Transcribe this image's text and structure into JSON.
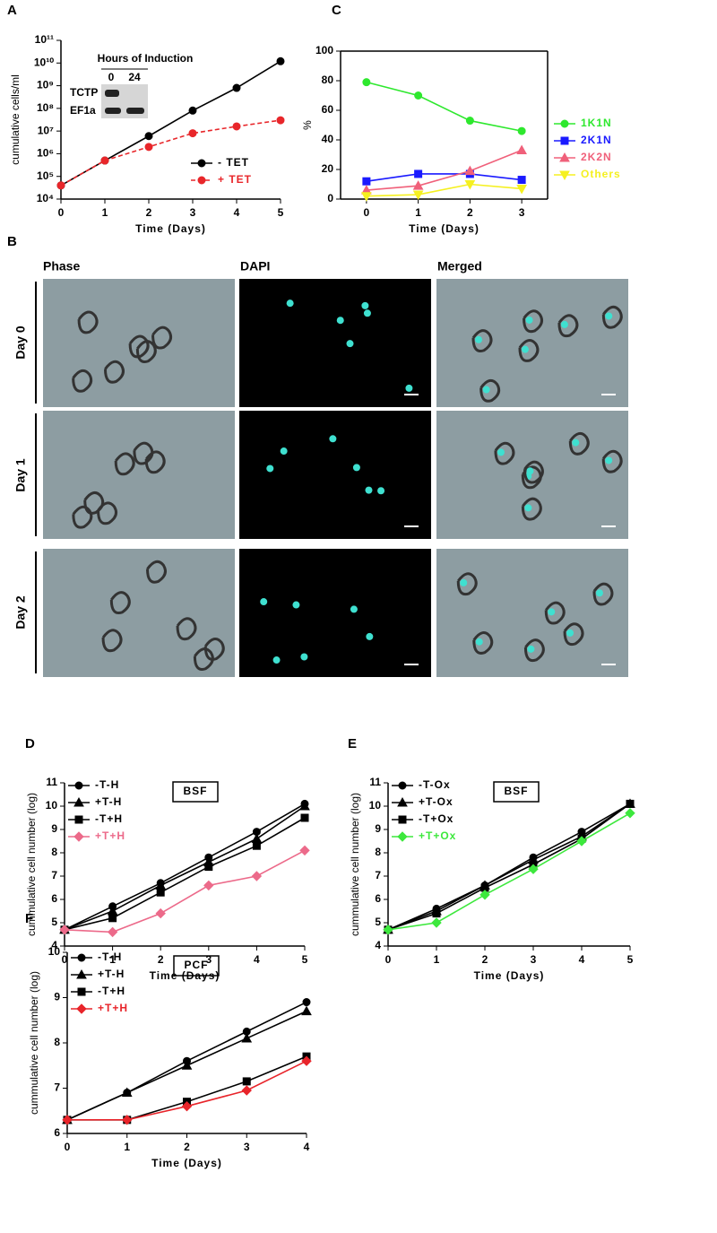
{
  "chart_data": [
    {
      "type": "line",
      "panel": "A",
      "xlabel": "Time (Days)",
      "ylabel": "cumulative cells/ml",
      "log_scale": true,
      "xlim": [
        0,
        5
      ],
      "xticks": [
        0,
        1,
        2,
        3,
        4,
        5
      ],
      "ylim": [
        10000,
        100000000000
      ],
      "yticks": [
        {
          "value": 10000,
          "label": "10⁴"
        },
        {
          "value": 100000,
          "label": "10⁵"
        },
        {
          "value": 1000000,
          "label": "10⁶"
        },
        {
          "value": 10000000,
          "label": "10⁷"
        },
        {
          "value": 100000000,
          "label": "10⁸"
        },
        {
          "value": 1000000000,
          "label": "10⁹"
        },
        {
          "value": 10000000000,
          "label": "10¹⁰"
        },
        {
          "value": 100000000000,
          "label": "10¹¹"
        }
      ],
      "legend_position": "lower right",
      "x": [
        0,
        1,
        2,
        3,
        4,
        5
      ],
      "series": [
        {
          "name": "- TET",
          "color": "#000000",
          "marker": "circle",
          "values": [
            40000,
            500000,
            6000000,
            80000000,
            800000000,
            12000000000
          ]
        },
        {
          "name": "+ TET",
          "color": "#e8262a",
          "marker": "circle",
          "dash": true,
          "values": [
            40000,
            500000,
            2000000,
            8000000,
            16000000,
            30000000
          ]
        }
      ],
      "inset": {
        "title": "Hours of Induction",
        "lanes": [
          "0",
          "24"
        ],
        "rows": [
          "TCTP",
          "EF1a"
        ]
      }
    },
    {
      "type": "line",
      "panel": "C",
      "xlabel": "Time (Days)",
      "ylabel": "%",
      "xlim": [
        -0.5,
        3.5
      ],
      "xticks": [
        0,
        1,
        2,
        3
      ],
      "ylim": [
        0,
        100
      ],
      "yticks": [
        0,
        20,
        40,
        60,
        80,
        100
      ],
      "legend_position": "right",
      "x": [
        0,
        1,
        2,
        3
      ],
      "series": [
        {
          "name": "1K1N",
          "color": "#2ee82e",
          "marker": "circle",
          "values": [
            79,
            70,
            53,
            46
          ]
        },
        {
          "name": "2K1N",
          "color": "#1a1aff",
          "marker": "square",
          "values": [
            12,
            17,
            17,
            13
          ]
        },
        {
          "name": "2K2N",
          "color": "#f0607a",
          "marker": "triangle",
          "values": [
            6,
            9,
            19,
            33
          ]
        },
        {
          "name": "Others",
          "color": "#f5f020",
          "marker": "triangle-down",
          "values": [
            2,
            3,
            10,
            7
          ]
        }
      ]
    },
    {
      "type": "line",
      "panel": "D",
      "xlabel": "Time (Days)",
      "ylabel": "cummulative cell number (log)",
      "annotation": "BSF",
      "xlim": [
        0,
        5
      ],
      "xticks": [
        0,
        1,
        2,
        3,
        4,
        5
      ],
      "ylim": [
        4,
        11
      ],
      "yticks": [
        4,
        5,
        6,
        7,
        8,
        9,
        10,
        11
      ],
      "legend_position": "upper left",
      "x": [
        0,
        1,
        2,
        3,
        4,
        5
      ],
      "series": [
        {
          "name": "-T-H",
          "color": "#000000",
          "marker": "circle",
          "values": [
            4.7,
            5.7,
            6.7,
            7.8,
            8.9,
            10.1
          ]
        },
        {
          "name": "+T-H",
          "color": "#000000",
          "marker": "triangle",
          "values": [
            4.7,
            5.5,
            6.6,
            7.6,
            8.6,
            10.0
          ]
        },
        {
          "name": "-T+H",
          "color": "#000000",
          "marker": "square",
          "values": [
            4.7,
            5.2,
            6.3,
            7.4,
            8.3,
            9.5
          ]
        },
        {
          "name": "+T+H",
          "color": "#ec6a8a",
          "marker": "diamond",
          "values": [
            4.7,
            4.6,
            5.4,
            6.6,
            7.0,
            8.1
          ]
        }
      ]
    },
    {
      "type": "line",
      "panel": "E",
      "xlabel": "Time (Days)",
      "ylabel": "cummulative cell number (log)",
      "annotation": "BSF",
      "xlim": [
        0,
        5
      ],
      "xticks": [
        0,
        1,
        2,
        3,
        4,
        5
      ],
      "ylim": [
        4,
        11
      ],
      "yticks": [
        4,
        5,
        6,
        7,
        8,
        9,
        10,
        11
      ],
      "legend_position": "upper left",
      "x": [
        0,
        1,
        2,
        3,
        4,
        5
      ],
      "series": [
        {
          "name": "-T-Ox",
          "color": "#000000",
          "marker": "circle",
          "values": [
            4.7,
            5.6,
            6.6,
            7.8,
            8.9,
            10.1
          ]
        },
        {
          "name": "+T-Ox",
          "color": "#000000",
          "marker": "triangle",
          "values": [
            4.7,
            5.5,
            6.6,
            7.7,
            8.7,
            10.1
          ]
        },
        {
          "name": "-T+Ox",
          "color": "#000000",
          "marker": "square",
          "values": [
            4.7,
            5.4,
            6.5,
            7.5,
            8.6,
            10.1
          ]
        },
        {
          "name": "+T+Ox",
          "color": "#3de83d",
          "marker": "diamond",
          "values": [
            4.7,
            5.0,
            6.2,
            7.3,
            8.5,
            9.7
          ]
        }
      ]
    },
    {
      "type": "line",
      "panel": "F",
      "xlabel": "Time (Days)",
      "ylabel": "cummulative cell number (log)",
      "annotation": "PCF",
      "xlim": [
        0,
        4
      ],
      "xticks": [
        0,
        1,
        2,
        3,
        4
      ],
      "ylim": [
        6,
        10
      ],
      "yticks": [
        6,
        7,
        8,
        9,
        10
      ],
      "legend_position": "upper left",
      "x": [
        0,
        1,
        2,
        3,
        4
      ],
      "series": [
        {
          "name": "-T-H",
          "color": "#000000",
          "marker": "circle",
          "values": [
            6.3,
            6.9,
            7.6,
            8.25,
            8.9
          ]
        },
        {
          "name": "+T-H",
          "color": "#000000",
          "marker": "triangle",
          "values": [
            6.3,
            6.9,
            7.5,
            8.1,
            8.7
          ]
        },
        {
          "name": "-T+H",
          "color": "#000000",
          "marker": "square",
          "values": [
            6.3,
            6.3,
            6.7,
            7.15,
            7.7
          ]
        },
        {
          "name": "+T+H",
          "color": "#e8242a",
          "marker": "diamond",
          "values": [
            6.3,
            6.3,
            6.6,
            6.95,
            7.6
          ]
        }
      ]
    }
  ],
  "panel_b": {
    "label": "B",
    "columns": [
      "Phase",
      "DAPI",
      "Merged"
    ],
    "rows": [
      "Day 0",
      "Day 1",
      "Day 2"
    ]
  }
}
